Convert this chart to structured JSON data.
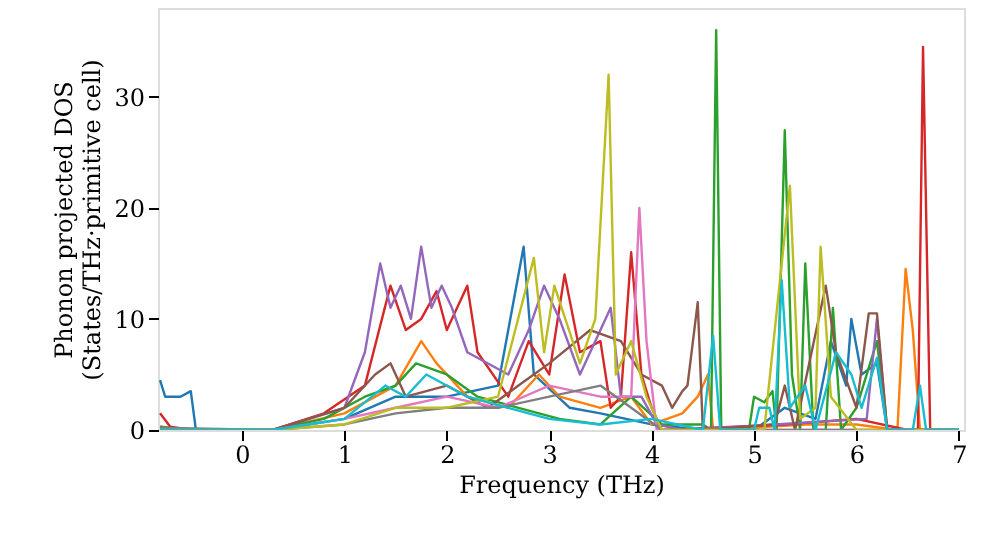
{
  "chart_data": {
    "type": "line",
    "xlabel": "Frequency (THz)",
    "ylabel": "Phonon projected DOS\n(States/THz·primitive cell)",
    "xlim": [
      -0.82,
      7.05
    ],
    "ylim": [
      0,
      38
    ],
    "xticks": [
      0,
      1,
      2,
      3,
      4,
      5,
      6,
      7
    ],
    "yticks": [
      0,
      10,
      20,
      30
    ],
    "grid": false,
    "legend": false,
    "marker": "none",
    "line_style": "solid",
    "series": [
      {
        "color": "#1f77b4",
        "x": [
          -0.8,
          -0.75,
          -0.6,
          -0.5,
          -0.45,
          0.3,
          1,
          1.5,
          2,
          2.5,
          2.75,
          2.85,
          3.2,
          3.5,
          4,
          4.5,
          5.0,
          5.3,
          5.6,
          5.75,
          5.9,
          5.95,
          6.05,
          6.2,
          6.3,
          7.0
        ],
        "values": [
          4.5,
          3,
          3,
          3.5,
          0,
          0,
          1,
          3,
          3,
          4,
          16.5,
          5,
          2,
          1.5,
          0.5,
          0,
          0,
          2,
          1,
          8,
          4,
          10,
          5,
          6,
          0,
          0
        ]
      },
      {
        "color": "#ff7f0e",
        "x": [
          -0.8,
          -0.5,
          0.3,
          1,
          1.5,
          1.75,
          1.9,
          2.2,
          2.6,
          2.9,
          3.1,
          3.5,
          3.8,
          4.0,
          4.3,
          4.45,
          4.55,
          4.6,
          5.5,
          6.0,
          6.4,
          6.48,
          6.55,
          6.62,
          7.0
        ],
        "values": [
          0.3,
          0,
          0,
          1.5,
          4,
          8,
          6,
          3,
          2,
          5,
          3,
          2,
          3,
          0.5,
          1.5,
          3,
          5,
          0,
          0.5,
          0.5,
          0,
          14.5,
          9,
          0,
          0
        ]
      },
      {
        "color": "#2ca02c",
        "x": [
          -0.8,
          -0.5,
          0.3,
          0.8,
          1.2,
          1.5,
          1.7,
          2,
          2.3,
          2.7,
          3.1,
          3.5,
          3.8,
          4.1,
          4.5,
          4.58,
          4.63,
          4.68,
          4.95,
          5.0,
          5.1,
          5.18,
          5.22,
          5.3,
          5.37,
          5.45,
          5.5,
          5.58,
          5.7,
          5.77,
          5.85,
          6.0,
          6.2,
          6.3,
          7.0
        ],
        "values": [
          0.3,
          0,
          0,
          1,
          3,
          4,
          6,
          5,
          3,
          2,
          1,
          0.5,
          3,
          0.5,
          0.5,
          0,
          36,
          0,
          0,
          3,
          2.5,
          3.5,
          0,
          27,
          5,
          0,
          15,
          0,
          0,
          11,
          0,
          2,
          8,
          0,
          0
        ]
      },
      {
        "color": "#d62728",
        "x": [
          -0.8,
          -0.7,
          -0.5,
          0.3,
          0.8,
          1.2,
          1.45,
          1.6,
          1.75,
          1.9,
          2.0,
          2.2,
          2.3,
          2.6,
          2.8,
          3.0,
          3.15,
          3.3,
          3.5,
          3.6,
          3.7,
          3.8,
          3.9,
          4.0,
          4.1,
          5.3,
          6.0,
          6.5,
          6.6,
          6.65,
          6.72,
          7.0
        ],
        "values": [
          1.5,
          0.3,
          0,
          0,
          1.5,
          4,
          13,
          9,
          10,
          12.5,
          9,
          13,
          7,
          3,
          8,
          5,
          14,
          7,
          8,
          2,
          3,
          16,
          5,
          2,
          0,
          0.5,
          1,
          0,
          0,
          34.5,
          0,
          0
        ]
      },
      {
        "color": "#9467bd",
        "x": [
          -0.8,
          0.3,
          1.0,
          1.2,
          1.35,
          1.45,
          1.55,
          1.65,
          1.75,
          1.85,
          1.95,
          2.05,
          2.2,
          2.6,
          2.8,
          2.95,
          3.1,
          3.3,
          3.6,
          3.7,
          3.9,
          4.05,
          4.3,
          6.1,
          6.2,
          6.3,
          7.0
        ],
        "values": [
          0,
          0,
          2,
          7,
          15,
          11,
          13,
          10,
          16.5,
          11,
          13,
          11,
          7,
          5,
          9,
          13,
          10,
          5,
          11,
          3,
          3,
          0.5,
          0,
          1,
          10,
          0,
          0
        ]
      },
      {
        "color": "#8c564b",
        "x": [
          -0.8,
          0.3,
          1.0,
          1.3,
          1.45,
          1.6,
          2.0,
          2.4,
          2.7,
          3.0,
          3.4,
          3.7,
          3.9,
          4.1,
          4.2,
          4.3,
          4.35,
          4.45,
          4.5,
          5.2,
          5.3,
          5.4,
          5.7,
          5.8,
          6.0,
          6.12,
          6.2,
          6.3,
          7.0
        ],
        "values": [
          0,
          0,
          2,
          5,
          6,
          3,
          4,
          2,
          4,
          6,
          9,
          8,
          5,
          4,
          2,
          3.5,
          4,
          11.5,
          0,
          0.5,
          4,
          0,
          13,
          7,
          2,
          10.5,
          10.5,
          0,
          0
        ]
      },
      {
        "color": "#e377c2",
        "x": [
          -0.8,
          0.3,
          1,
          1.5,
          2,
          2.5,
          3,
          3.5,
          3.8,
          3.88,
          3.95,
          4.05,
          7.0
        ],
        "values": [
          0,
          0,
          1,
          2,
          3,
          2,
          4,
          3,
          3,
          20,
          8,
          0,
          0
        ]
      },
      {
        "color": "#7f7f7f",
        "x": [
          -0.8,
          0.3,
          1,
          1.5,
          2,
          2.5,
          3,
          3.5,
          3.8,
          4.1,
          7.0
        ],
        "values": [
          0.2,
          0,
          0.5,
          1.5,
          2,
          2,
          3,
          4,
          2,
          0,
          0
        ]
      },
      {
        "color": "#bcbd22",
        "x": [
          -0.8,
          0.3,
          1,
          1.5,
          2,
          2.5,
          2.85,
          2.95,
          3.05,
          3.3,
          3.45,
          3.58,
          3.65,
          3.8,
          3.95,
          4.1,
          5.1,
          5.35,
          5.45,
          5.6,
          5.65,
          5.75,
          6.0,
          7.0
        ],
        "values": [
          0,
          0,
          0.5,
          2,
          2,
          3,
          15.5,
          7,
          13,
          6,
          10,
          32,
          5,
          8,
          3,
          0,
          0,
          22,
          1,
          2,
          16.5,
          3,
          0,
          0
        ]
      },
      {
        "color": "#17becf",
        "x": [
          -0.8,
          0.3,
          1,
          1.4,
          1.6,
          1.8,
          2.2,
          2.6,
          3,
          3.5,
          4.0,
          4.5,
          4.6,
          4.67,
          5.0,
          5.05,
          5.15,
          5.2,
          5.27,
          5.35,
          5.5,
          5.6,
          5.8,
          5.95,
          6.05,
          6.2,
          6.3,
          6.55,
          6.62,
          6.68,
          7.0
        ],
        "values": [
          0,
          0,
          1,
          4,
          3,
          5,
          3,
          2,
          1,
          0.5,
          1,
          0,
          8.5,
          0,
          0,
          2,
          2,
          0,
          13.5,
          2,
          4,
          0,
          7,
          5,
          2,
          6.5,
          0,
          0,
          4,
          0,
          0
        ]
      }
    ]
  }
}
